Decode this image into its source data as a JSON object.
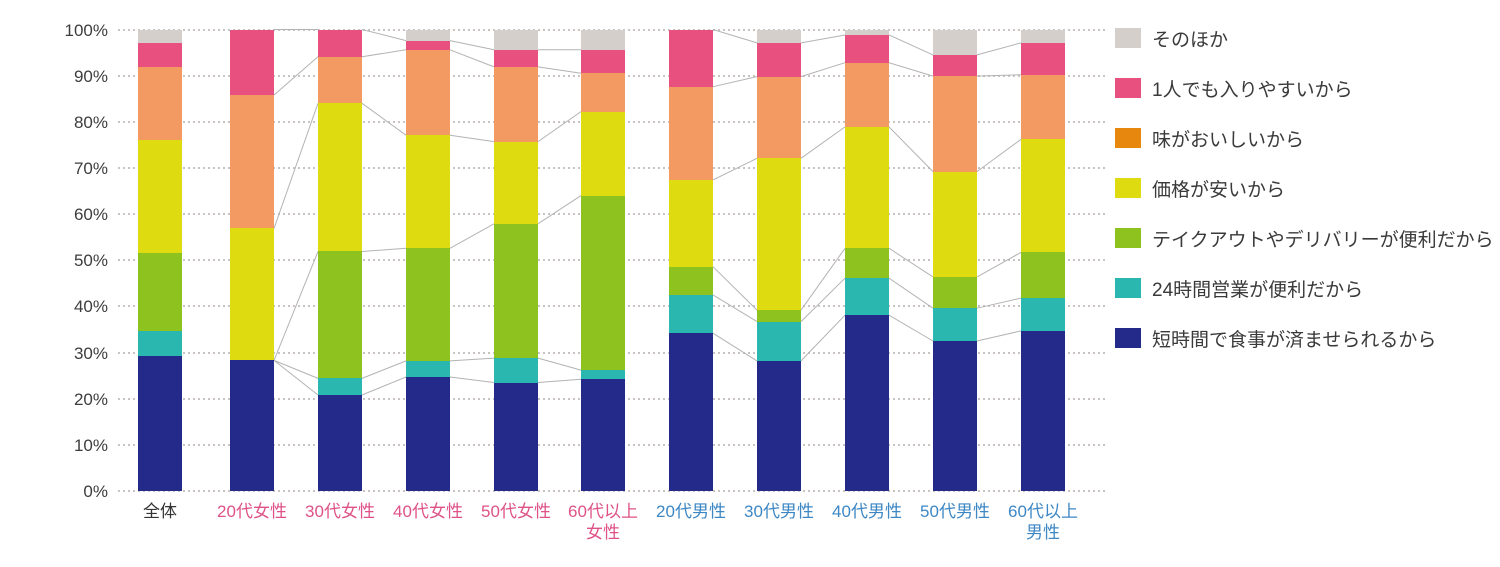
{
  "chart_data": {
    "type": "bar",
    "subtype": "stacked-100-percent",
    "title": "",
    "xlabel": "",
    "ylabel": "",
    "unit": "%",
    "grid": true,
    "legend_position": "right",
    "y_axis": {
      "min": 0,
      "max": 100,
      "step": 10,
      "ticks": [
        "0%",
        "10%",
        "20%",
        "30%",
        "40%",
        "50%",
        "60%",
        "70%",
        "80%",
        "90%",
        "100%"
      ]
    },
    "categories": [
      {
        "label": "全体",
        "color": "#333333",
        "group": "all"
      },
      {
        "label": "20代女性",
        "color": "#DE5287",
        "group": "female"
      },
      {
        "label": "30代女性",
        "color": "#DE5287",
        "group": "female"
      },
      {
        "label": "40代女性",
        "color": "#DE5287",
        "group": "female"
      },
      {
        "label": "50代女性",
        "color": "#DE5287",
        "group": "female"
      },
      {
        "label": "60代以上\n女性",
        "color": "#DE5287",
        "group": "female"
      },
      {
        "label": "20代男性",
        "color": "#3D87C4",
        "group": "male"
      },
      {
        "label": "30代男性",
        "color": "#3D87C4",
        "group": "male"
      },
      {
        "label": "40代男性",
        "color": "#3D87C4",
        "group": "male"
      },
      {
        "label": "50代男性",
        "color": "#3D87C4",
        "group": "male"
      },
      {
        "label": "60代以上\n男性",
        "color": "#3D87C4",
        "group": "male"
      }
    ],
    "series": [
      {
        "name": "短時間で食事が済ませられるから",
        "color": "#232A8A",
        "values": [
          29.2,
          28.3,
          20.8,
          24.7,
          23.5,
          24.2,
          34.2,
          28.2,
          38.1,
          32.5,
          34.7
        ]
      },
      {
        "name": "24時間営業が便利だから",
        "color": "#29B7B0",
        "values": [
          5.5,
          0,
          3.6,
          3.5,
          5.3,
          2.0,
          8.3,
          8.5,
          8.0,
          7.1,
          7.1
        ]
      },
      {
        "name": "テイクアウトやデリバリーが便利だから",
        "color": "#8DC21F",
        "values": [
          16.8,
          0,
          27.5,
          24.4,
          29.1,
          37.8,
          6.1,
          2.5,
          6.5,
          6.8,
          9.9
        ]
      },
      {
        "name": "価格が安いから",
        "color": "#DEDC10",
        "values": [
          24.6,
          28.6,
          32.1,
          24.5,
          17.8,
          18.2,
          18.8,
          32.9,
          26.3,
          22.8,
          24.5
        ]
      },
      {
        "name": "味がおいしいから",
        "color": "#F29A62",
        "legend_color": "#E8870E",
        "values": [
          15.8,
          28.9,
          10.1,
          18.5,
          16.2,
          8.3,
          20.2,
          17.7,
          13.9,
          20.7,
          14.0
        ]
      },
      {
        "name": "1人でも入りやすいから",
        "color": "#E85080",
        "values": [
          5.2,
          14.2,
          5.9,
          2.0,
          3.7,
          5.1,
          12.4,
          7.3,
          6.0,
          4.6,
          6.9
        ]
      },
      {
        "name": "そのほか",
        "color": "#D5CFCC",
        "values": [
          2.9,
          0,
          0,
          2.4,
          4.4,
          4.4,
          0,
          2.9,
          1.2,
          5.5,
          2.9
        ]
      }
    ],
    "legend_order_top_to_bottom": [
      "そのほか",
      "1人でも入りやすいから",
      "味がおいしいから",
      "価格が安いから",
      "テイクアウトやデリバリーが便利だから",
      "24時間営業が便利だから",
      "短時間で食事が済ませられるから"
    ],
    "connectors": {
      "description": "thin gray lines joining cumulative segment boundaries of adjacent bars within each gender group",
      "color": "#B3B3B3",
      "groups": [
        [
          1,
          2,
          3,
          4,
          5
        ],
        [
          6,
          7,
          8,
          9,
          10
        ]
      ]
    },
    "colors": {
      "grid": "#C9C4C2",
      "axis_text": "#3D3D3D",
      "female_label": "#DE5287",
      "male_label": "#3D87C4"
    }
  }
}
